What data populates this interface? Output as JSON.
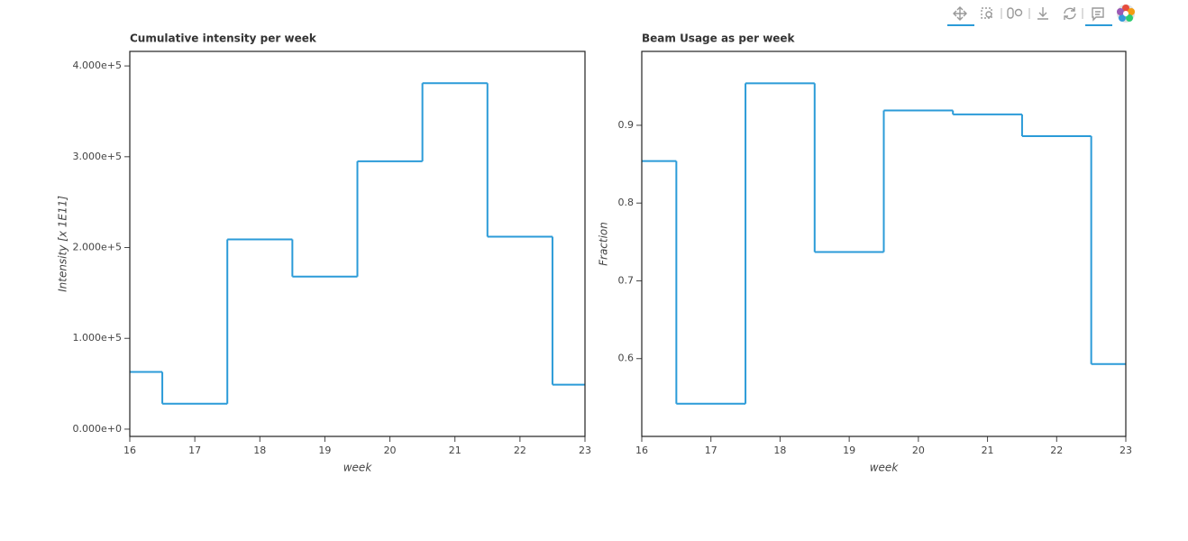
{
  "chart_data": [
    {
      "type": "step",
      "step": "center",
      "title": "Cumulative intensity per week",
      "x_label": "week",
      "y_label": "Intensity [x 1E11]",
      "x": [
        16,
        17,
        18,
        19,
        20,
        21,
        22,
        23
      ],
      "values": [
        63000,
        28000,
        209000,
        168000,
        295000,
        381000,
        212000,
        49000
      ],
      "color": "#2b9bd8",
      "xlim": [
        16,
        23
      ],
      "xticks": [
        16,
        17,
        18,
        19,
        20,
        21,
        22,
        23
      ],
      "ylim": [
        -8000,
        416000
      ],
      "yticks": [
        {
          "value": 0,
          "label": "0.000e+0"
        },
        {
          "value": 100000,
          "label": "1.000e+5"
        },
        {
          "value": 200000,
          "label": "2.000e+5"
        },
        {
          "value": 300000,
          "label": "3.000e+5"
        },
        {
          "value": 400000,
          "label": "4.000e+5"
        }
      ]
    },
    {
      "type": "step",
      "step": "center",
      "title": "Beam Usage as per week",
      "x_label": "week",
      "y_label": "Fraction",
      "x": [
        16,
        17,
        18,
        19,
        20,
        21,
        22,
        23
      ],
      "values": [
        0.854,
        0.542,
        0.954,
        0.737,
        0.919,
        0.914,
        0.886,
        0.593
      ],
      "color": "#2b9bd8",
      "xlim": [
        16,
        23
      ],
      "xticks": [
        16,
        17,
        18,
        19,
        20,
        21,
        22,
        23
      ],
      "ylim": [
        0.5,
        0.995
      ],
      "yticks": [
        0.6,
        0.7,
        0.8,
        0.9
      ]
    }
  ]
}
